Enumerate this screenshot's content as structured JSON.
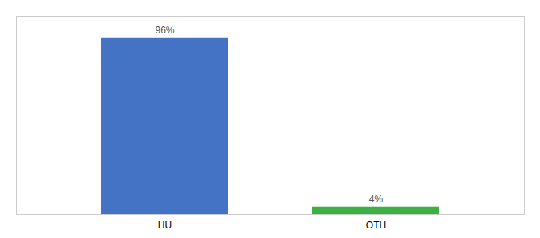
{
  "chart_data": {
    "type": "bar",
    "categories": [
      "HU",
      "OTH"
    ],
    "values": [
      96,
      4
    ],
    "value_labels": [
      "96%",
      "4%"
    ],
    "colors": [
      "#4472c4",
      "#3cb043"
    ],
    "ylim": [
      0,
      108
    ],
    "data_labels": true,
    "tick_labels": "x"
  }
}
